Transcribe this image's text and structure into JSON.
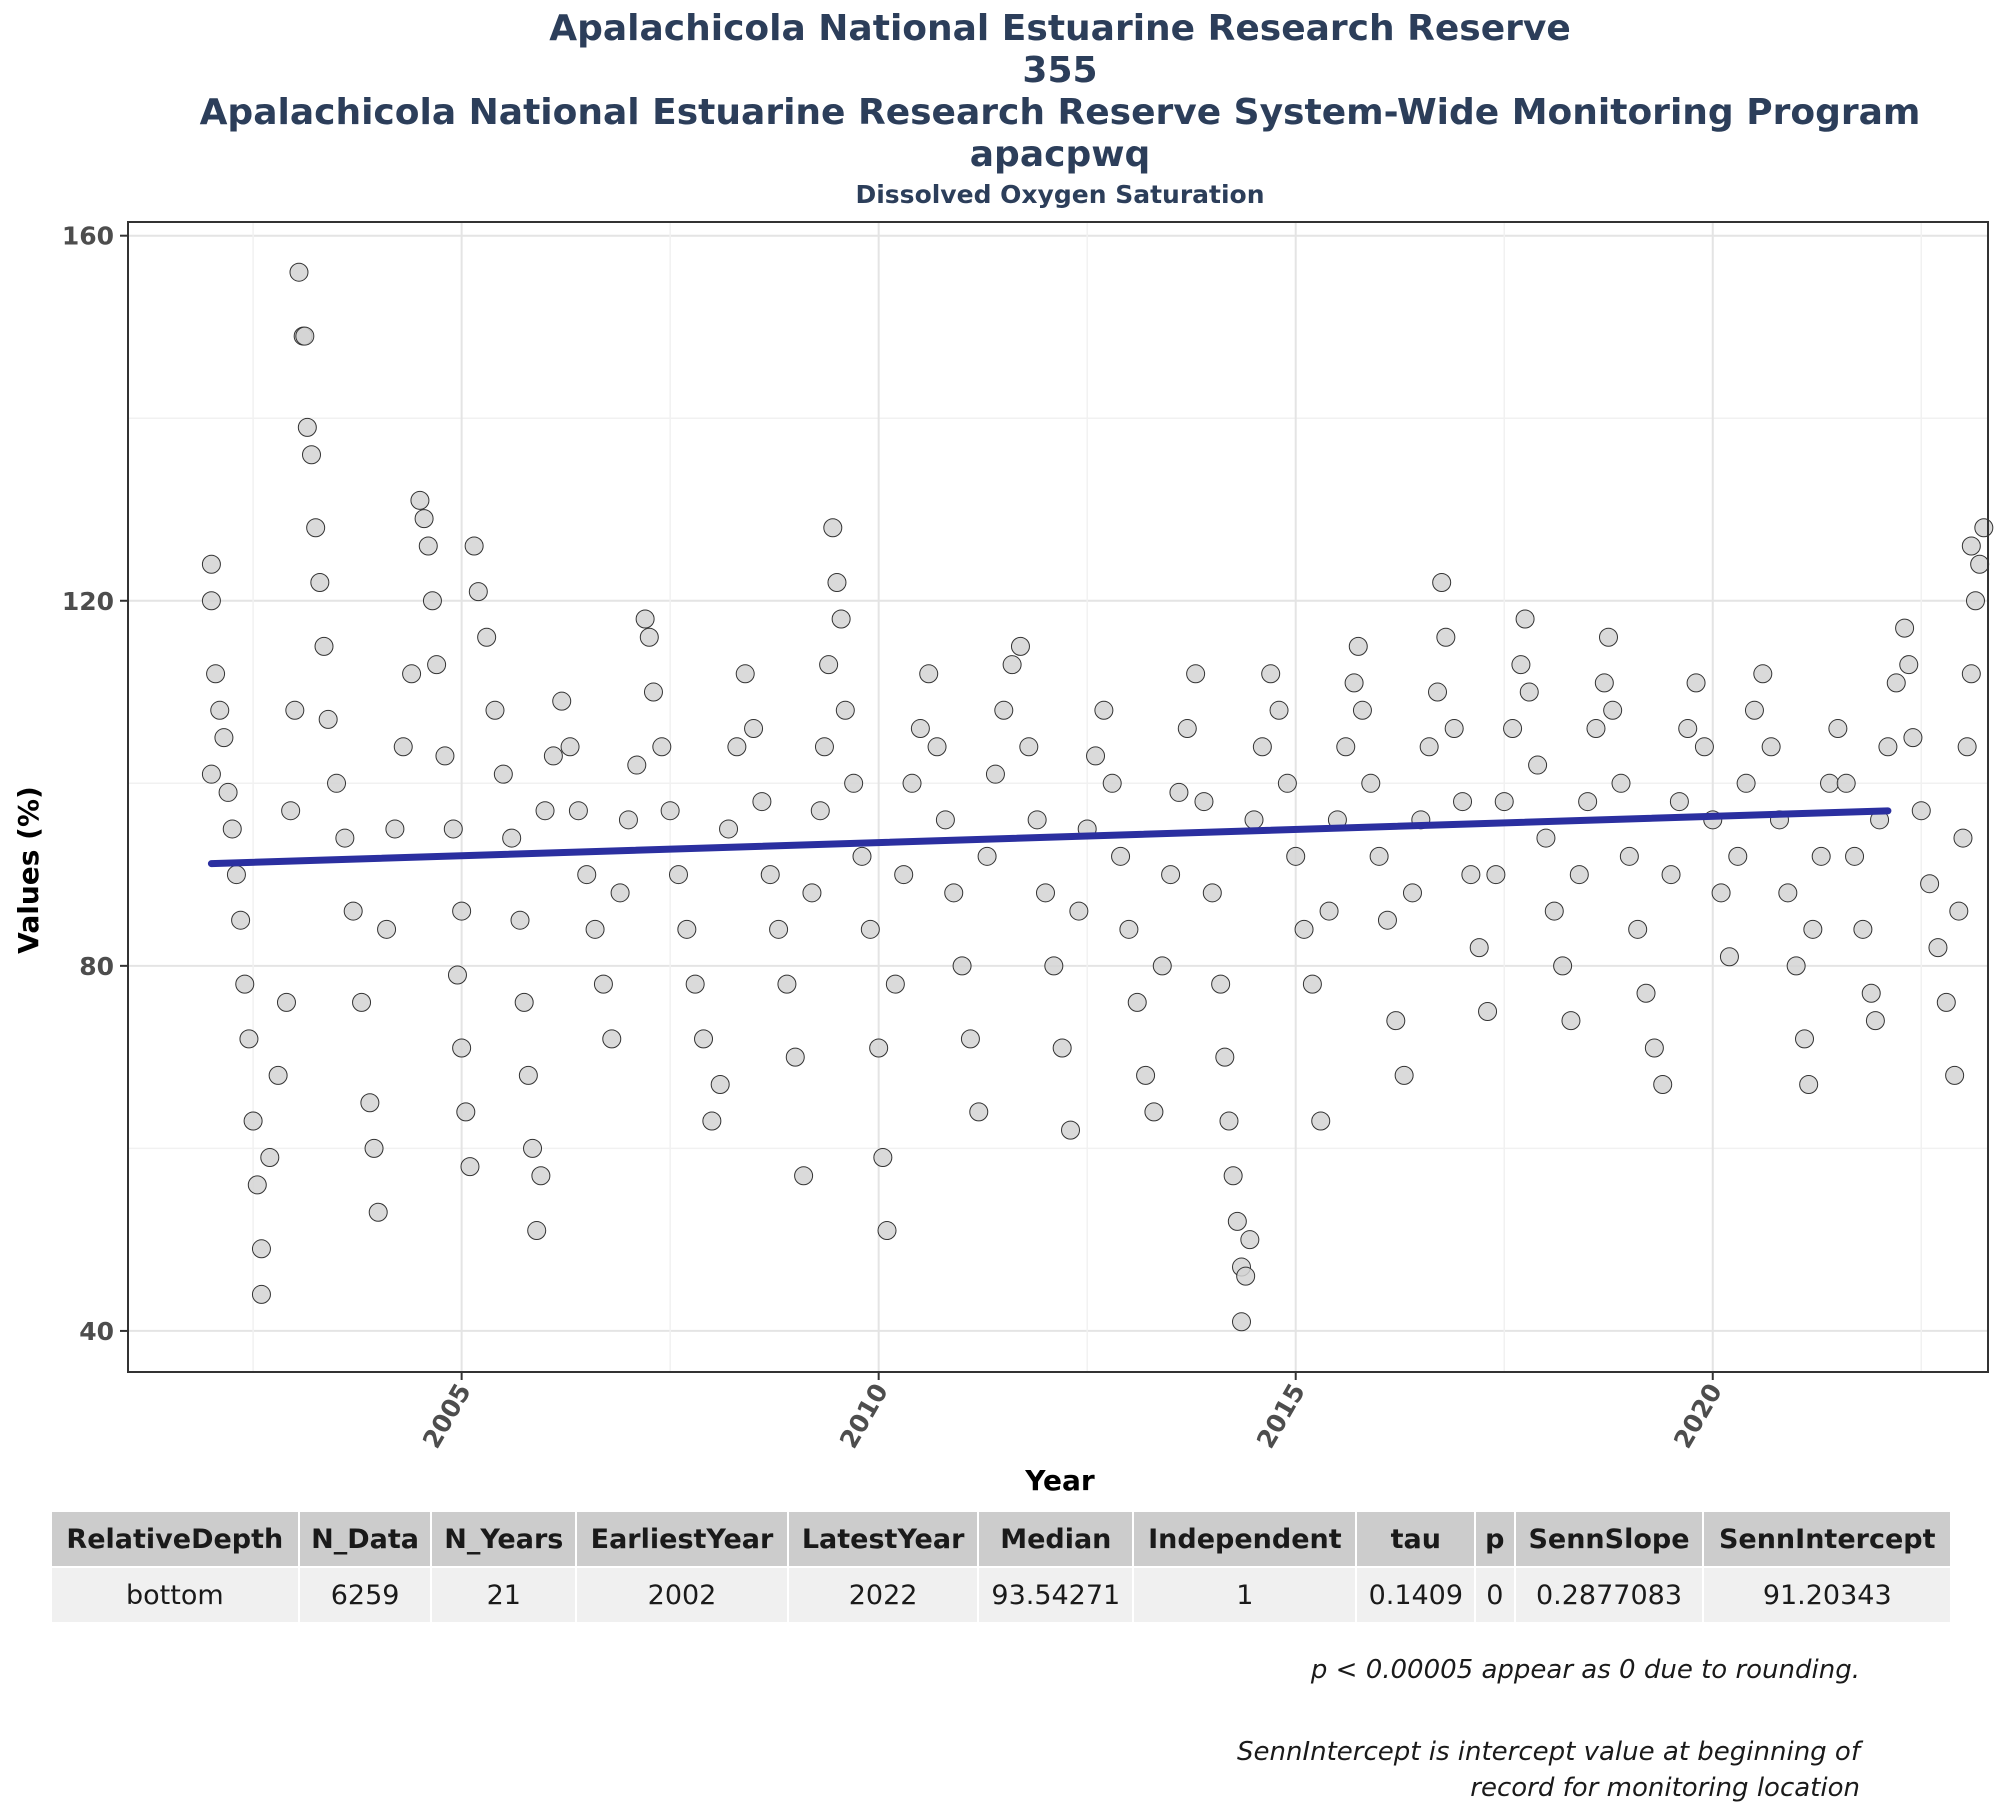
{
  "titles": [
    "Apalachicola National Estuarine Research Reserve",
    "355",
    "Apalachicola National Estuarine Research Reserve System-Wide Monitoring Program",
    "apacpwq"
  ],
  "subtitle": "Dissolved Oxygen Saturation",
  "chart_data": {
    "type": "scatter",
    "xlabel": "Year",
    "ylabel": "Values (%)",
    "xlim": [
      2001.0,
      2023.3
    ],
    "ylim": [
      35.5,
      161.5
    ],
    "x_ticks": [
      2005,
      2010,
      2015,
      2020
    ],
    "y_ticks": [
      40,
      80,
      120,
      160
    ],
    "grid": true,
    "legend": "none",
    "point_fill": "#d3d3d3",
    "point_stroke": "#333333",
    "trend_color": "#2b2fa0",
    "trend_line": {
      "x_start": 2002.0,
      "x_end": 2022.1,
      "intercept": 91.20343,
      "slope": 0.2877083
    },
    "series": [
      {
        "points": [
          [
            2002.0,
            124
          ],
          [
            2002.0,
            120
          ],
          [
            2002.0,
            101
          ],
          [
            2002.05,
            112
          ],
          [
            2002.1,
            108
          ],
          [
            2002.15,
            105
          ],
          [
            2002.2,
            99
          ],
          [
            2002.25,
            95
          ],
          [
            2002.3,
            90
          ],
          [
            2002.35,
            85
          ],
          [
            2002.4,
            78
          ],
          [
            2002.45,
            72
          ],
          [
            2002.5,
            63
          ],
          [
            2002.55,
            56
          ],
          [
            2002.6,
            49
          ],
          [
            2002.6,
            44
          ],
          [
            2002.7,
            59
          ],
          [
            2002.8,
            68
          ],
          [
            2002.9,
            76
          ],
          [
            2002.95,
            97
          ],
          [
            2003.0,
            108
          ],
          [
            2003.05,
            156
          ],
          [
            2003.1,
            149
          ],
          [
            2003.12,
            149
          ],
          [
            2003.15,
            139
          ],
          [
            2003.2,
            136
          ],
          [
            2003.25,
            128
          ],
          [
            2003.3,
            122
          ],
          [
            2003.35,
            115
          ],
          [
            2003.4,
            107
          ],
          [
            2003.5,
            100
          ],
          [
            2003.6,
            94
          ],
          [
            2003.7,
            86
          ],
          [
            2003.8,
            76
          ],
          [
            2003.9,
            65
          ],
          [
            2003.95,
            60
          ],
          [
            2004.0,
            53
          ],
          [
            2004.1,
            84
          ],
          [
            2004.2,
            95
          ],
          [
            2004.3,
            104
          ],
          [
            2004.4,
            112
          ],
          [
            2004.5,
            131
          ],
          [
            2004.55,
            129
          ],
          [
            2004.6,
            126
          ],
          [
            2004.65,
            120
          ],
          [
            2004.7,
            113
          ],
          [
            2004.8,
            103
          ],
          [
            2004.9,
            95
          ],
          [
            2005.0,
            86
          ],
          [
            2004.95,
            79
          ],
          [
            2005.0,
            71
          ],
          [
            2005.05,
            64
          ],
          [
            2005.1,
            58
          ],
          [
            2005.15,
            126
          ],
          [
            2005.2,
            121
          ],
          [
            2005.3,
            116
          ],
          [
            2005.4,
            108
          ],
          [
            2005.5,
            101
          ],
          [
            2005.6,
            94
          ],
          [
            2005.7,
            85
          ],
          [
            2005.75,
            76
          ],
          [
            2005.8,
            68
          ],
          [
            2005.85,
            60
          ],
          [
            2005.9,
            51
          ],
          [
            2005.95,
            57
          ],
          [
            2006.0,
            97
          ],
          [
            2006.1,
            103
          ],
          [
            2006.2,
            109
          ],
          [
            2006.3,
            104
          ],
          [
            2006.4,
            97
          ],
          [
            2006.5,
            90
          ],
          [
            2006.6,
            84
          ],
          [
            2006.7,
            78
          ],
          [
            2006.8,
            72
          ],
          [
            2006.9,
            88
          ],
          [
            2007.0,
            96
          ],
          [
            2007.1,
            102
          ],
          [
            2007.2,
            118
          ],
          [
            2007.25,
            116
          ],
          [
            2007.3,
            110
          ],
          [
            2007.4,
            104
          ],
          [
            2007.5,
            97
          ],
          [
            2007.6,
            90
          ],
          [
            2007.7,
            84
          ],
          [
            2007.8,
            78
          ],
          [
            2007.9,
            72
          ],
          [
            2008.0,
            63
          ],
          [
            2008.1,
            67
          ],
          [
            2008.2,
            95
          ],
          [
            2008.3,
            104
          ],
          [
            2008.4,
            112
          ],
          [
            2008.5,
            106
          ],
          [
            2008.6,
            98
          ],
          [
            2008.7,
            90
          ],
          [
            2008.8,
            84
          ],
          [
            2008.9,
            78
          ],
          [
            2009.0,
            70
          ],
          [
            2009.1,
            57
          ],
          [
            2009.2,
            88
          ],
          [
            2009.3,
            97
          ],
          [
            2009.35,
            104
          ],
          [
            2009.4,
            113
          ],
          [
            2009.45,
            128
          ],
          [
            2009.5,
            122
          ],
          [
            2009.55,
            118
          ],
          [
            2009.6,
            108
          ],
          [
            2009.7,
            100
          ],
          [
            2009.8,
            92
          ],
          [
            2009.9,
            84
          ],
          [
            2010.0,
            71
          ],
          [
            2010.05,
            59
          ],
          [
            2010.1,
            51
          ],
          [
            2010.2,
            78
          ],
          [
            2010.3,
            90
          ],
          [
            2010.4,
            100
          ],
          [
            2010.5,
            106
          ],
          [
            2010.6,
            112
          ],
          [
            2010.7,
            104
          ],
          [
            2010.8,
            96
          ],
          [
            2010.9,
            88
          ],
          [
            2011.0,
            80
          ],
          [
            2011.1,
            72
          ],
          [
            2011.2,
            64
          ],
          [
            2011.3,
            92
          ],
          [
            2011.4,
            101
          ],
          [
            2011.5,
            108
          ],
          [
            2011.6,
            113
          ],
          [
            2011.7,
            115
          ],
          [
            2011.8,
            104
          ],
          [
            2011.9,
            96
          ],
          [
            2012.0,
            88
          ],
          [
            2012.1,
            80
          ],
          [
            2012.2,
            71
          ],
          [
            2012.3,
            62
          ],
          [
            2012.4,
            86
          ],
          [
            2012.5,
            95
          ],
          [
            2012.6,
            103
          ],
          [
            2012.7,
            108
          ],
          [
            2012.8,
            100
          ],
          [
            2012.9,
            92
          ],
          [
            2013.0,
            84
          ],
          [
            2013.1,
            76
          ],
          [
            2013.2,
            68
          ],
          [
            2013.3,
            64
          ],
          [
            2013.4,
            80
          ],
          [
            2013.5,
            90
          ],
          [
            2013.6,
            99
          ],
          [
            2013.7,
            106
          ],
          [
            2013.8,
            112
          ],
          [
            2013.9,
            98
          ],
          [
            2014.0,
            88
          ],
          [
            2014.1,
            78
          ],
          [
            2014.15,
            70
          ],
          [
            2014.2,
            63
          ],
          [
            2014.25,
            57
          ],
          [
            2014.3,
            52
          ],
          [
            2014.35,
            47
          ],
          [
            2014.35,
            41
          ],
          [
            2014.4,
            46
          ],
          [
            2014.45,
            50
          ],
          [
            2014.5,
            96
          ],
          [
            2014.6,
            104
          ],
          [
            2014.7,
            112
          ],
          [
            2014.8,
            108
          ],
          [
            2014.9,
            100
          ],
          [
            2015.0,
            92
          ],
          [
            2015.1,
            84
          ],
          [
            2015.2,
            78
          ],
          [
            2015.3,
            63
          ],
          [
            2015.4,
            86
          ],
          [
            2015.5,
            96
          ],
          [
            2015.6,
            104
          ],
          [
            2015.7,
            111
          ],
          [
            2015.75,
            115
          ],
          [
            2015.8,
            108
          ],
          [
            2015.9,
            100
          ],
          [
            2016.0,
            92
          ],
          [
            2016.1,
            85
          ],
          [
            2016.2,
            74
          ],
          [
            2016.3,
            68
          ],
          [
            2016.4,
            88
          ],
          [
            2016.5,
            96
          ],
          [
            2016.6,
            104
          ],
          [
            2016.7,
            110
          ],
          [
            2016.75,
            122
          ],
          [
            2016.8,
            116
          ],
          [
            2016.9,
            106
          ],
          [
            2017.0,
            98
          ],
          [
            2017.1,
            90
          ],
          [
            2017.2,
            82
          ],
          [
            2017.3,
            75
          ],
          [
            2017.4,
            90
          ],
          [
            2017.5,
            98
          ],
          [
            2017.6,
            106
          ],
          [
            2017.7,
            113
          ],
          [
            2017.75,
            118
          ],
          [
            2017.8,
            110
          ],
          [
            2017.9,
            102
          ],
          [
            2018.0,
            94
          ],
          [
            2018.1,
            86
          ],
          [
            2018.2,
            80
          ],
          [
            2018.3,
            74
          ],
          [
            2018.4,
            90
          ],
          [
            2018.5,
            98
          ],
          [
            2018.6,
            106
          ],
          [
            2018.7,
            111
          ],
          [
            2018.75,
            116
          ],
          [
            2018.8,
            108
          ],
          [
            2018.9,
            100
          ],
          [
            2019.0,
            92
          ],
          [
            2019.1,
            84
          ],
          [
            2019.2,
            77
          ],
          [
            2019.3,
            71
          ],
          [
            2019.4,
            67
          ],
          [
            2019.5,
            90
          ],
          [
            2019.6,
            98
          ],
          [
            2019.7,
            106
          ],
          [
            2019.8,
            111
          ],
          [
            2019.9,
            104
          ],
          [
            2020.0,
            96
          ],
          [
            2020.1,
            88
          ],
          [
            2020.2,
            81
          ],
          [
            2020.3,
            92
          ],
          [
            2020.4,
            100
          ],
          [
            2020.5,
            108
          ],
          [
            2020.6,
            112
          ],
          [
            2020.7,
            104
          ],
          [
            2020.8,
            96
          ],
          [
            2020.9,
            88
          ],
          [
            2021.0,
            80
          ],
          [
            2021.1,
            72
          ],
          [
            2021.15,
            67
          ],
          [
            2021.2,
            84
          ],
          [
            2021.3,
            92
          ],
          [
            2021.4,
            100
          ],
          [
            2021.5,
            106
          ],
          [
            2021.6,
            100
          ],
          [
            2021.7,
            92
          ],
          [
            2021.8,
            84
          ],
          [
            2021.9,
            77
          ],
          [
            2021.95,
            74
          ],
          [
            2022.0,
            96
          ],
          [
            2022.1,
            104
          ],
          [
            2022.2,
            111
          ],
          [
            2022.3,
            117
          ],
          [
            2022.35,
            113
          ],
          [
            2022.4,
            105
          ],
          [
            2022.5,
            97
          ],
          [
            2022.6,
            89
          ],
          [
            2022.7,
            82
          ],
          [
            2022.8,
            76
          ],
          [
            2022.9,
            68
          ],
          [
            2022.95,
            86
          ],
          [
            2023.0,
            94
          ],
          [
            2023.05,
            104
          ],
          [
            2023.1,
            112
          ],
          [
            2023.15,
            120
          ],
          [
            2023.2,
            124
          ],
          [
            2023.25,
            128
          ],
          [
            2023.1,
            126
          ]
        ]
      }
    ]
  },
  "table": {
    "headers": [
      "RelativeDepth",
      "N_Data",
      "N_Years",
      "EarliestYear",
      "LatestYear",
      "Median",
      "Independent",
      "tau",
      "p",
      "SennSlope",
      "SennIntercept"
    ],
    "rows": [
      [
        "bottom",
        "6259",
        "21",
        "2002",
        "2022",
        "93.54271",
        "1",
        "0.1409",
        "0",
        "0.2877083",
        "91.20343"
      ]
    ]
  },
  "notes": {
    "n1": "p < 0.00005 appear as 0 due to rounding.",
    "n2_line1": "SennIntercept is intercept value at beginning of",
    "n2_line2": "record for monitoring location"
  }
}
